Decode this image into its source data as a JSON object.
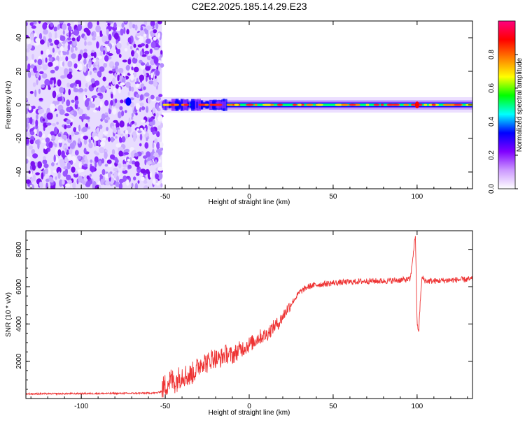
{
  "title": "C2E2.2025.185.14.29.E23",
  "spectrogram": {
    "type": "heatmap",
    "xlabel": "Height of straight line (km)",
    "ylabel": "Frequency (Hz)",
    "xlim": [
      -133,
      133
    ],
    "ylim": [
      -50,
      50
    ],
    "xticks": [
      -100,
      -50,
      0,
      50,
      100
    ],
    "yticks": [
      -40,
      -20,
      0,
      20,
      40
    ],
    "noise_region_x": [
      -133,
      -52
    ],
    "signal_region_x": [
      -52,
      133
    ],
    "signal_center_freq": 0,
    "colorbar": {
      "label": "Normalized spectral amplitude",
      "range": [
        0,
        1
      ],
      "ticks": [
        "0.0",
        "0.2",
        "0.4",
        "0.6",
        "0.8"
      ],
      "colormap": [
        "#ffffff",
        "#cc99ff",
        "#8000ff",
        "#0000ff",
        "#00ffff",
        "#00ff00",
        "#ffff00",
        "#ff8000",
        "#ff0000",
        "#ff0080"
      ]
    }
  },
  "chart_data": [
    {
      "type": "line",
      "xlabel": "Height of straight line (km)",
      "ylabel": "SNR (10 * v/v)",
      "xlim": [
        -133,
        133
      ],
      "ylim": [
        0,
        9000
      ],
      "xticks": [
        -100,
        -50,
        0,
        50,
        100
      ],
      "yticks": [
        2000,
        4000,
        6000,
        8000
      ],
      "color": "#ee3333",
      "x": [
        -133,
        -110,
        -90,
        -70,
        -55,
        -52,
        -50,
        -47,
        -44,
        -40,
        -36,
        -32,
        -28,
        -25,
        -22,
        -18,
        -14,
        -10,
        -6,
        -2,
        2,
        6,
        10,
        14,
        18,
        22,
        26,
        30,
        35,
        40,
        50,
        60,
        70,
        80,
        90,
        96,
        99,
        100,
        101,
        102,
        103,
        105,
        110,
        120,
        133
      ],
      "y": [
        250,
        260,
        270,
        280,
        300,
        400,
        700,
        1000,
        900,
        1300,
        1200,
        1500,
        2000,
        1900,
        2200,
        2100,
        2400,
        2300,
        2600,
        2800,
        3000,
        3300,
        3400,
        3800,
        4100,
        4700,
        5200,
        5700,
        6000,
        6100,
        6200,
        6250,
        6300,
        6300,
        6350,
        6400,
        8800,
        4000,
        3600,
        5400,
        6500,
        6300,
        6300,
        6350,
        6400
      ]
    }
  ]
}
